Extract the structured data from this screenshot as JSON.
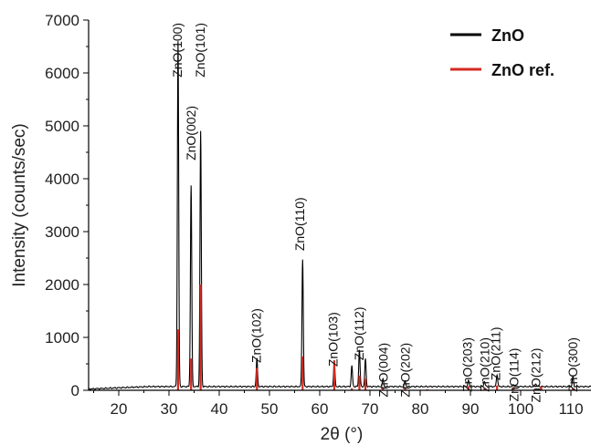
{
  "chart_data": {
    "type": "line",
    "xlabel": "2θ (°)",
    "ylabel": "Intensity (counts/sec)",
    "xlim": [
      14,
      114
    ],
    "ylim": [
      0,
      7000
    ],
    "x_ticks": [
      20,
      30,
      40,
      50,
      60,
      70,
      80,
      90,
      100,
      110
    ],
    "y_ticks": [
      0,
      1000,
      2000,
      3000,
      4000,
      5000,
      6000,
      7000
    ],
    "grid": false,
    "legend_position": "top-right",
    "series": [
      {
        "name": "ZnO",
        "color": "#000000",
        "style": "line",
        "baseline": 70,
        "peaks": [
          {
            "x": 31.8,
            "y": 6600
          },
          {
            "x": 34.4,
            "y": 3880
          },
          {
            "x": 36.3,
            "y": 4900
          },
          {
            "x": 47.5,
            "y": 600
          },
          {
            "x": 56.6,
            "y": 2480
          },
          {
            "x": 62.9,
            "y": 560
          },
          {
            "x": 66.4,
            "y": 460
          },
          {
            "x": 67.9,
            "y": 770
          },
          {
            "x": 69.1,
            "y": 590
          },
          {
            "x": 72.6,
            "y": 210
          },
          {
            "x": 77.0,
            "y": 180
          },
          {
            "x": 89.6,
            "y": 190
          },
          {
            "x": 92.8,
            "y": 170
          },
          {
            "x": 95.3,
            "y": 300
          },
          {
            "x": 98.6,
            "y": 110
          },
          {
            "x": 103.0,
            "y": 130
          },
          {
            "x": 110.4,
            "y": 250
          }
        ]
      },
      {
        "name": "ZnO ref.",
        "color": "#d42a20",
        "style": "sticks",
        "points": [
          {
            "x": 31.8,
            "y": 1150
          },
          {
            "x": 34.4,
            "y": 600
          },
          {
            "x": 36.3,
            "y": 2000
          },
          {
            "x": 47.5,
            "y": 420
          },
          {
            "x": 56.6,
            "y": 640
          },
          {
            "x": 62.9,
            "y": 560
          },
          {
            "x": 66.4,
            "y": 40
          },
          {
            "x": 67.9,
            "y": 280
          },
          {
            "x": 69.1,
            "y": 220
          },
          {
            "x": 72.6,
            "y": 40
          },
          {
            "x": 77.0,
            "y": 60
          },
          {
            "x": 81.4,
            "y": 20
          },
          {
            "x": 89.6,
            "y": 80
          },
          {
            "x": 92.8,
            "y": 40
          },
          {
            "x": 95.3,
            "y": 90
          },
          {
            "x": 98.6,
            "y": 60
          },
          {
            "x": 104.1,
            "y": 70
          },
          {
            "x": 110.4,
            "y": 40
          }
        ]
      }
    ],
    "annotations": [
      {
        "text": "ZnO(100)",
        "x": 31.6,
        "y": 6950
      },
      {
        "text": "ZnO(002)",
        "x": 34.4,
        "y": 5380
      },
      {
        "text": "ZnO(101)",
        "x": 36.2,
        "y": 6950
      },
      {
        "text": "ZnO(102)",
        "x": 47.4,
        "y": 1550
      },
      {
        "text": "ZnO(110)",
        "x": 56.0,
        "y": 3650
      },
      {
        "text": "ZnO(103)",
        "x": 62.6,
        "y": 1480
      },
      {
        "text": "ZnO(112)",
        "x": 67.8,
        "y": 1580
      },
      {
        "text": "ZnO(004)",
        "x": 72.6,
        "y": 900
      },
      {
        "text": "ZnO(202)",
        "x": 77.0,
        "y": 900
      },
      {
        "text": "ZnO(203)",
        "x": 89.4,
        "y": 1000
      },
      {
        "text": "ZnO(210)",
        "x": 92.8,
        "y": 1000
      },
      {
        "text": "ZnO(211)",
        "x": 95.0,
        "y": 1200
      },
      {
        "text": "ZnO(114)",
        "x": 98.6,
        "y": 800
      },
      {
        "text": "ZnO(212)",
        "x": 103.0,
        "y": 800
      },
      {
        "text": "ZnO(300)",
        "x": 110.4,
        "y": 1000
      }
    ]
  }
}
